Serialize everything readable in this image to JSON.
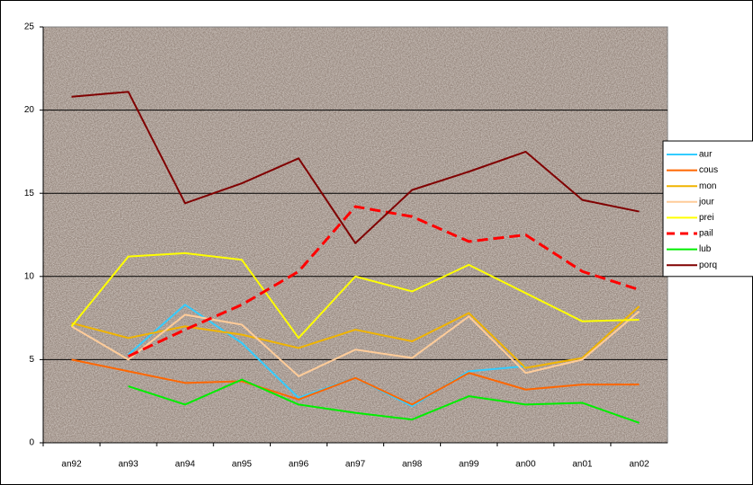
{
  "chart_data": {
    "type": "line",
    "categories": [
      "an92",
      "an93",
      "an94",
      "an95",
      "an96",
      "an97",
      "an98",
      "an99",
      "an00",
      "an01",
      "an02"
    ],
    "series": [
      {
        "name": "aur",
        "color": "#33ccff",
        "values": [
          null,
          5.3,
          8.3,
          6.0,
          2.7,
          3.9,
          2.2,
          4.3,
          4.6,
          null,
          null
        ]
      },
      {
        "name": "cous",
        "color": "#ff6600",
        "values": [
          5.0,
          4.3,
          3.6,
          3.7,
          2.6,
          3.9,
          2.3,
          4.2,
          3.2,
          3.5,
          3.5
        ]
      },
      {
        "name": "mon",
        "color": "#f0b400",
        "values": [
          7.2,
          6.3,
          7.0,
          6.5,
          5.7,
          6.8,
          6.1,
          7.8,
          4.5,
          5.1,
          8.2
        ]
      },
      {
        "name": "jour",
        "color": "#ffcc99",
        "values": [
          7.0,
          5.0,
          7.7,
          7.1,
          4.0,
          5.6,
          5.1,
          7.6,
          4.2,
          5.0,
          7.9
        ]
      },
      {
        "name": "prei",
        "color": "#ffff00",
        "values": [
          7.0,
          11.2,
          11.4,
          11.0,
          6.3,
          10.0,
          9.1,
          10.7,
          9.0,
          7.3,
          7.4
        ]
      },
      {
        "name": "pail",
        "color": "#ff0000",
        "style": "dashed",
        "values": [
          null,
          5.2,
          6.8,
          8.3,
          10.3,
          14.2,
          13.6,
          12.1,
          12.5,
          10.3,
          9.2
        ]
      },
      {
        "name": "lub",
        "color": "#00ee00",
        "values": [
          null,
          3.4,
          2.3,
          3.8,
          2.3,
          1.8,
          1.4,
          2.8,
          2.3,
          2.4,
          1.2
        ]
      },
      {
        "name": "porq",
        "color": "#800000",
        "values": [
          20.8,
          21.1,
          14.4,
          15.6,
          17.1,
          12.0,
          15.2,
          16.3,
          17.5,
          14.6,
          13.9
        ]
      }
    ],
    "ylim": [
      0,
      25
    ],
    "yticks": [
      0,
      5,
      10,
      15,
      20,
      25
    ],
    "grid": true,
    "legend": "right"
  }
}
